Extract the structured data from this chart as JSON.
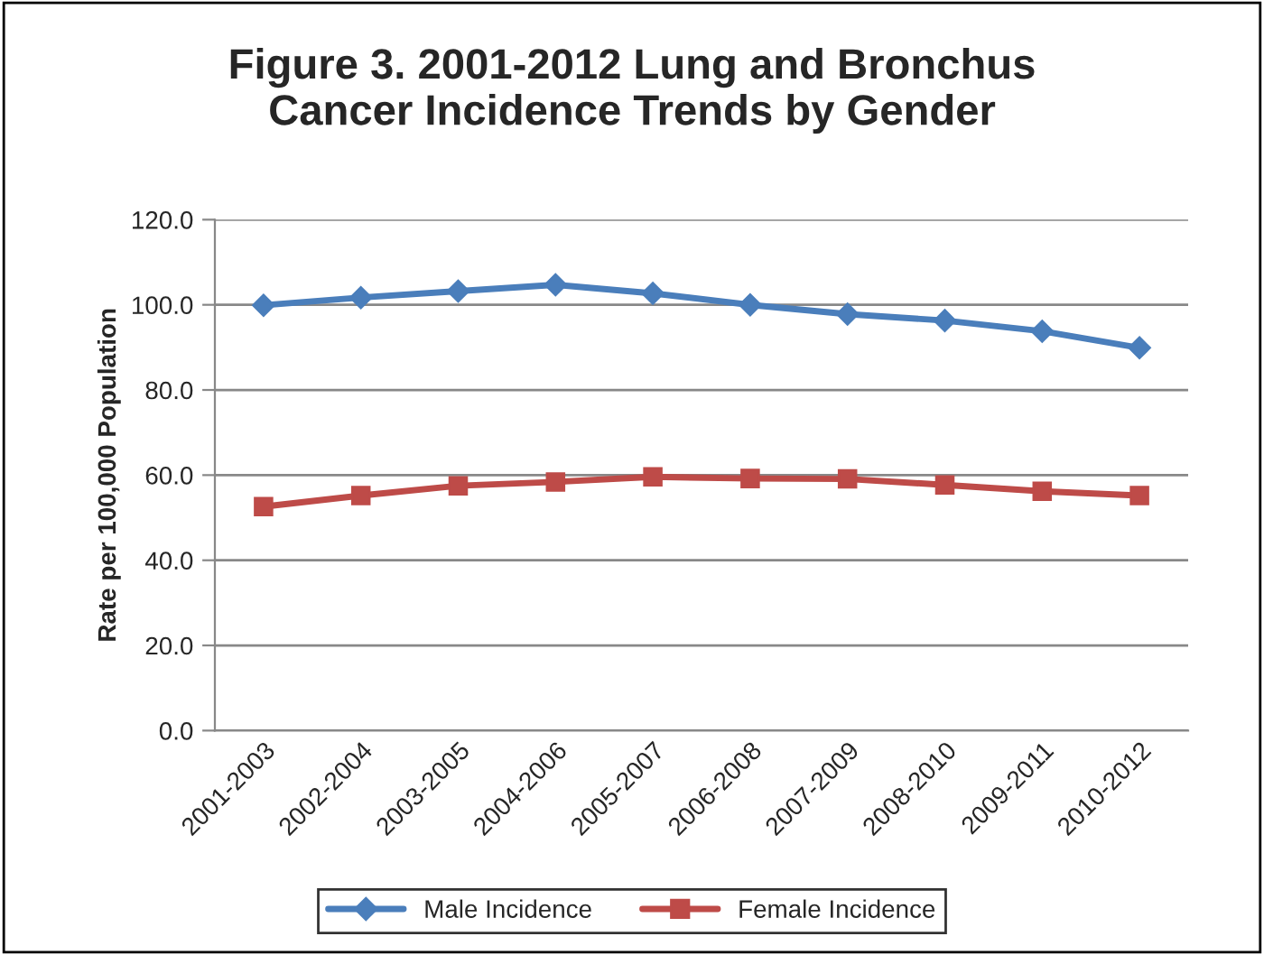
{
  "chart_data": {
    "type": "line",
    "title": "Figure 3. 2001-2012 Lung and Bronchus\nCancer Incidence Trends by Gender",
    "ylabel": "Rate per 100,000 Population",
    "categories": [
      "2001-2003",
      "2002-2004",
      "2003-2005",
      "2004-2006",
      "2005-2007",
      "2006-2008",
      "2007-2009",
      "2008-2010",
      "2009-2011",
      "2010-2012"
    ],
    "series": [
      {
        "name": "Male Incidence",
        "color": "#4a7ebb",
        "marker": "diamond",
        "values": [
          99.9,
          101.7,
          103.2,
          104.7,
          102.7,
          100.0,
          97.8,
          96.3,
          93.8,
          89.9
        ]
      },
      {
        "name": "Female Incidence",
        "color": "#be4b48",
        "marker": "square",
        "values": [
          52.6,
          55.2,
          57.5,
          58.4,
          59.6,
          59.2,
          59.1,
          57.7,
          56.2,
          55.2
        ]
      }
    ],
    "ylim": [
      0,
      120
    ],
    "yticks": [
      {
        "value": 0,
        "label": "0.0"
      },
      {
        "value": 20,
        "label": "20.0"
      },
      {
        "value": 40,
        "label": "40.0"
      },
      {
        "value": 60,
        "label": "60.0"
      },
      {
        "value": 80,
        "label": "80.0"
      },
      {
        "value": 100,
        "label": "100.0"
      },
      {
        "value": 120,
        "label": "120.0"
      }
    ],
    "grid": "y",
    "legend": "bottom",
    "line_style": "solid"
  }
}
